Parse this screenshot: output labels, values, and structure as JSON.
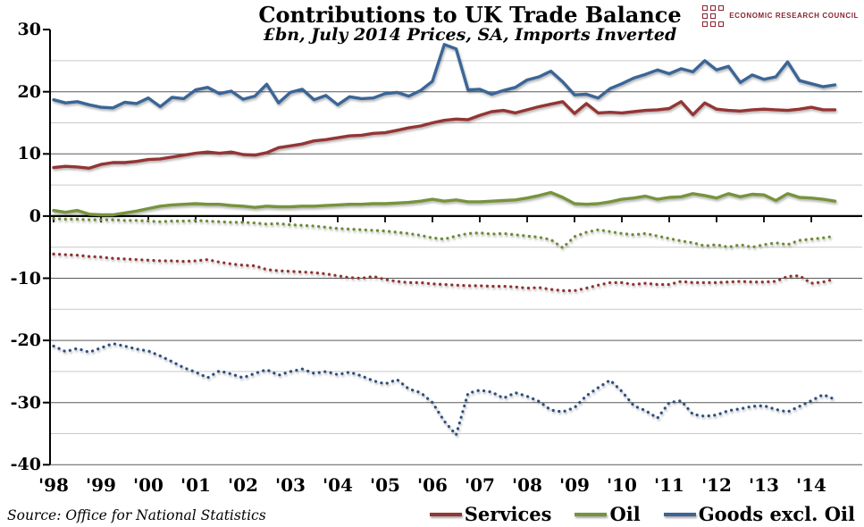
{
  "header": {
    "title": "Contributions to UK Trade Balance",
    "subtitle": "£bn, July 2014 Prices, SA, Imports Inverted"
  },
  "logo": {
    "text": "ECONOMIC RESEARCH COUNCIL",
    "color": "#8B2332"
  },
  "source": {
    "text": "Source: Office for National Statistics"
  },
  "legend": {
    "items": [
      {
        "label": "Services",
        "color": "#943634"
      },
      {
        "label": "Oil",
        "color": "#77933C"
      },
      {
        "label": "Goods excl. Oil",
        "color": "#3A6596"
      }
    ]
  },
  "axes": {
    "y_ticks": [
      {
        "label": "30",
        "value": 30
      },
      {
        "label": "20",
        "value": 20
      },
      {
        "label": "10",
        "value": 10
      },
      {
        "label": "0",
        "value": 0
      },
      {
        "label": "-10",
        "value": -10
      },
      {
        "label": "-20",
        "value": -20
      },
      {
        "label": "-30",
        "value": -30
      },
      {
        "label": "-40",
        "value": -40
      }
    ],
    "x_ticks": [
      {
        "label": "'98",
        "year": 1998
      },
      {
        "label": "'99",
        "year": 1999
      },
      {
        "label": "'00",
        "year": 2000
      },
      {
        "label": "'01",
        "year": 2001
      },
      {
        "label": "'02",
        "year": 2002
      },
      {
        "label": "'03",
        "year": 2003
      },
      {
        "label": "'04",
        "year": 2004
      },
      {
        "label": "'05",
        "year": 2005
      },
      {
        "label": "'06",
        "year": 2006
      },
      {
        "label": "'07",
        "year": 2007
      },
      {
        "label": "'08",
        "year": 2008
      },
      {
        "label": "'09",
        "year": 2009
      },
      {
        "label": "'10",
        "year": 2010
      },
      {
        "label": "'11",
        "year": 2011
      },
      {
        "label": "'12",
        "year": 2012
      },
      {
        "label": "'13",
        "year": 2013
      },
      {
        "label": "'14",
        "year": 2014
      }
    ]
  },
  "chart_data": {
    "type": "line",
    "title": "Contributions to UK Trade Balance",
    "subtitle": "£bn, July 2014 Prices, SA, Imports Inverted",
    "ylim": [
      -40,
      30
    ],
    "x_start": 1998.0,
    "x_step": 0.25,
    "grid": {
      "minor_step": 5,
      "major_step": 10,
      "zero_axis": true
    },
    "legend_position": "bottom-right",
    "series": [
      {
        "name": "Services",
        "style": "solid",
        "color": "#943634",
        "values": [
          7.8,
          8.0,
          7.9,
          7.7,
          8.3,
          8.6,
          8.6,
          8.8,
          9.1,
          9.2,
          9.5,
          9.8,
          10.1,
          10.3,
          10.1,
          10.3,
          9.9,
          9.8,
          10.2,
          11.0,
          11.3,
          11.6,
          12.1,
          12.3,
          12.6,
          12.9,
          13.0,
          13.3,
          13.4,
          13.8,
          14.2,
          14.5,
          15.0,
          15.4,
          15.6,
          15.5,
          16.2,
          16.8,
          17.0,
          16.6,
          17.1,
          17.6,
          18.0,
          18.4,
          16.5,
          18.1,
          16.6,
          16.7,
          16.6,
          16.8,
          17.0,
          17.1,
          17.3,
          18.4,
          16.3,
          18.2,
          17.2,
          17.0,
          16.9,
          17.1,
          17.2,
          17.1,
          17.0,
          17.2,
          17.5,
          17.1,
          17.1
        ]
      },
      {
        "name": "Oil",
        "style": "solid",
        "color": "#77933C",
        "values": [
          0.9,
          0.6,
          0.9,
          0.3,
          0.2,
          0.2,
          0.5,
          0.8,
          1.2,
          1.6,
          1.8,
          1.9,
          2.0,
          1.9,
          1.9,
          1.7,
          1.6,
          1.4,
          1.6,
          1.5,
          1.5,
          1.6,
          1.6,
          1.7,
          1.8,
          1.9,
          1.9,
          2.0,
          2.0,
          2.1,
          2.2,
          2.4,
          2.7,
          2.4,
          2.6,
          2.3,
          2.3,
          2.4,
          2.5,
          2.6,
          2.9,
          3.3,
          3.8,
          3.0,
          2.0,
          1.9,
          2.0,
          2.3,
          2.7,
          2.9,
          3.2,
          2.7,
          3.0,
          3.1,
          3.6,
          3.3,
          2.9,
          3.6,
          3.1,
          3.5,
          3.4,
          2.5,
          3.6,
          3.0,
          2.9,
          2.7,
          2.4
        ]
      },
      {
        "name": "Goods excl. Oil",
        "style": "solid",
        "color": "#3A6596",
        "values": [
          18.7,
          18.2,
          18.4,
          17.9,
          17.5,
          17.4,
          18.3,
          18.1,
          19.0,
          17.6,
          19.1,
          18.9,
          20.3,
          20.7,
          19.7,
          20.1,
          18.8,
          19.3,
          21.2,
          18.2,
          19.9,
          20.4,
          18.7,
          19.4,
          17.9,
          19.2,
          18.9,
          19.0,
          19.7,
          19.9,
          19.3,
          20.2,
          21.7,
          27.6,
          26.9,
          20.3,
          20.4,
          19.6,
          20.2,
          20.7,
          21.9,
          22.4,
          23.3,
          21.6,
          19.5,
          19.6,
          19.0,
          20.5,
          21.3,
          22.2,
          22.8,
          23.5,
          22.9,
          23.7,
          23.2,
          25.0,
          23.5,
          24.1,
          21.5,
          22.7,
          22.0,
          22.4,
          24.8,
          21.8,
          21.3,
          20.8,
          21.1
        ]
      },
      {
        "name": "Services imports (inverted)",
        "style": "dotted",
        "color": "#8E3331",
        "values": [
          -6.1,
          -6.2,
          -6.3,
          -6.5,
          -6.6,
          -6.8,
          -6.9,
          -7.0,
          -7.1,
          -7.2,
          -7.2,
          -7.3,
          -7.2,
          -7.0,
          -7.4,
          -7.7,
          -7.9,
          -8.0,
          -8.6,
          -8.8,
          -8.9,
          -9.0,
          -9.1,
          -9.3,
          -9.6,
          -9.9,
          -10.0,
          -9.7,
          -10.2,
          -10.5,
          -10.7,
          -10.7,
          -10.9,
          -11.0,
          -11.1,
          -11.2,
          -11.2,
          -11.3,
          -11.3,
          -11.4,
          -11.6,
          -11.5,
          -11.8,
          -12.0,
          -12.0,
          -11.6,
          -11.1,
          -10.7,
          -10.7,
          -11.0,
          -10.8,
          -11.0,
          -11.0,
          -10.5,
          -10.7,
          -10.7,
          -10.7,
          -10.6,
          -10.5,
          -10.6,
          -10.6,
          -10.5,
          -9.7,
          -9.6,
          -10.8,
          -10.6,
          -10.1
        ]
      },
      {
        "name": "Oil imports (inverted)",
        "style": "dotted",
        "color": "#6E8A36",
        "values": [
          -0.4,
          -0.5,
          -0.5,
          -0.6,
          -0.6,
          -0.6,
          -0.7,
          -0.7,
          -0.8,
          -0.9,
          -0.8,
          -0.8,
          -0.7,
          -0.8,
          -0.9,
          -1.0,
          -1.0,
          -1.1,
          -1.3,
          -1.2,
          -1.4,
          -1.5,
          -1.6,
          -1.8,
          -2.0,
          -2.1,
          -2.2,
          -2.3,
          -2.4,
          -2.6,
          -2.8,
          -3.1,
          -3.5,
          -3.7,
          -3.2,
          -2.8,
          -2.7,
          -2.9,
          -2.8,
          -3.0,
          -3.2,
          -3.4,
          -3.8,
          -5.1,
          -3.3,
          -2.6,
          -2.2,
          -2.5,
          -2.8,
          -3.0,
          -2.8,
          -3.2,
          -3.6,
          -4.0,
          -4.3,
          -4.8,
          -4.6,
          -5.0,
          -4.6,
          -5.0,
          -4.6,
          -4.3,
          -4.6,
          -3.9,
          -3.7,
          -3.5,
          -3.2
        ]
      },
      {
        "name": "Goods excl. Oil imports (inverted)",
        "style": "dotted",
        "color": "#2E4D7E",
        "values": [
          -20.9,
          -21.8,
          -21.3,
          -21.9,
          -21.2,
          -20.5,
          -20.9,
          -21.4,
          -21.7,
          -22.5,
          -23.4,
          -24.4,
          -25.1,
          -26.0,
          -24.9,
          -25.4,
          -26.0,
          -25.3,
          -24.7,
          -25.6,
          -25.0,
          -24.6,
          -25.3,
          -25.0,
          -25.5,
          -25.1,
          -25.7,
          -26.5,
          -27.0,
          -26.3,
          -27.8,
          -28.4,
          -30.0,
          -33.0,
          -35.2,
          -28.5,
          -28.0,
          -28.3,
          -29.3,
          -28.4,
          -29.0,
          -29.8,
          -31.2,
          -31.5,
          -30.8,
          -28.9,
          -27.6,
          -26.4,
          -28.2,
          -30.5,
          -31.3,
          -32.5,
          -30.0,
          -29.7,
          -31.9,
          -32.2,
          -32.0,
          -31.3,
          -31.0,
          -30.6,
          -30.5,
          -31.1,
          -31.5,
          -30.6,
          -29.7,
          -28.7,
          -29.5
        ]
      }
    ]
  }
}
